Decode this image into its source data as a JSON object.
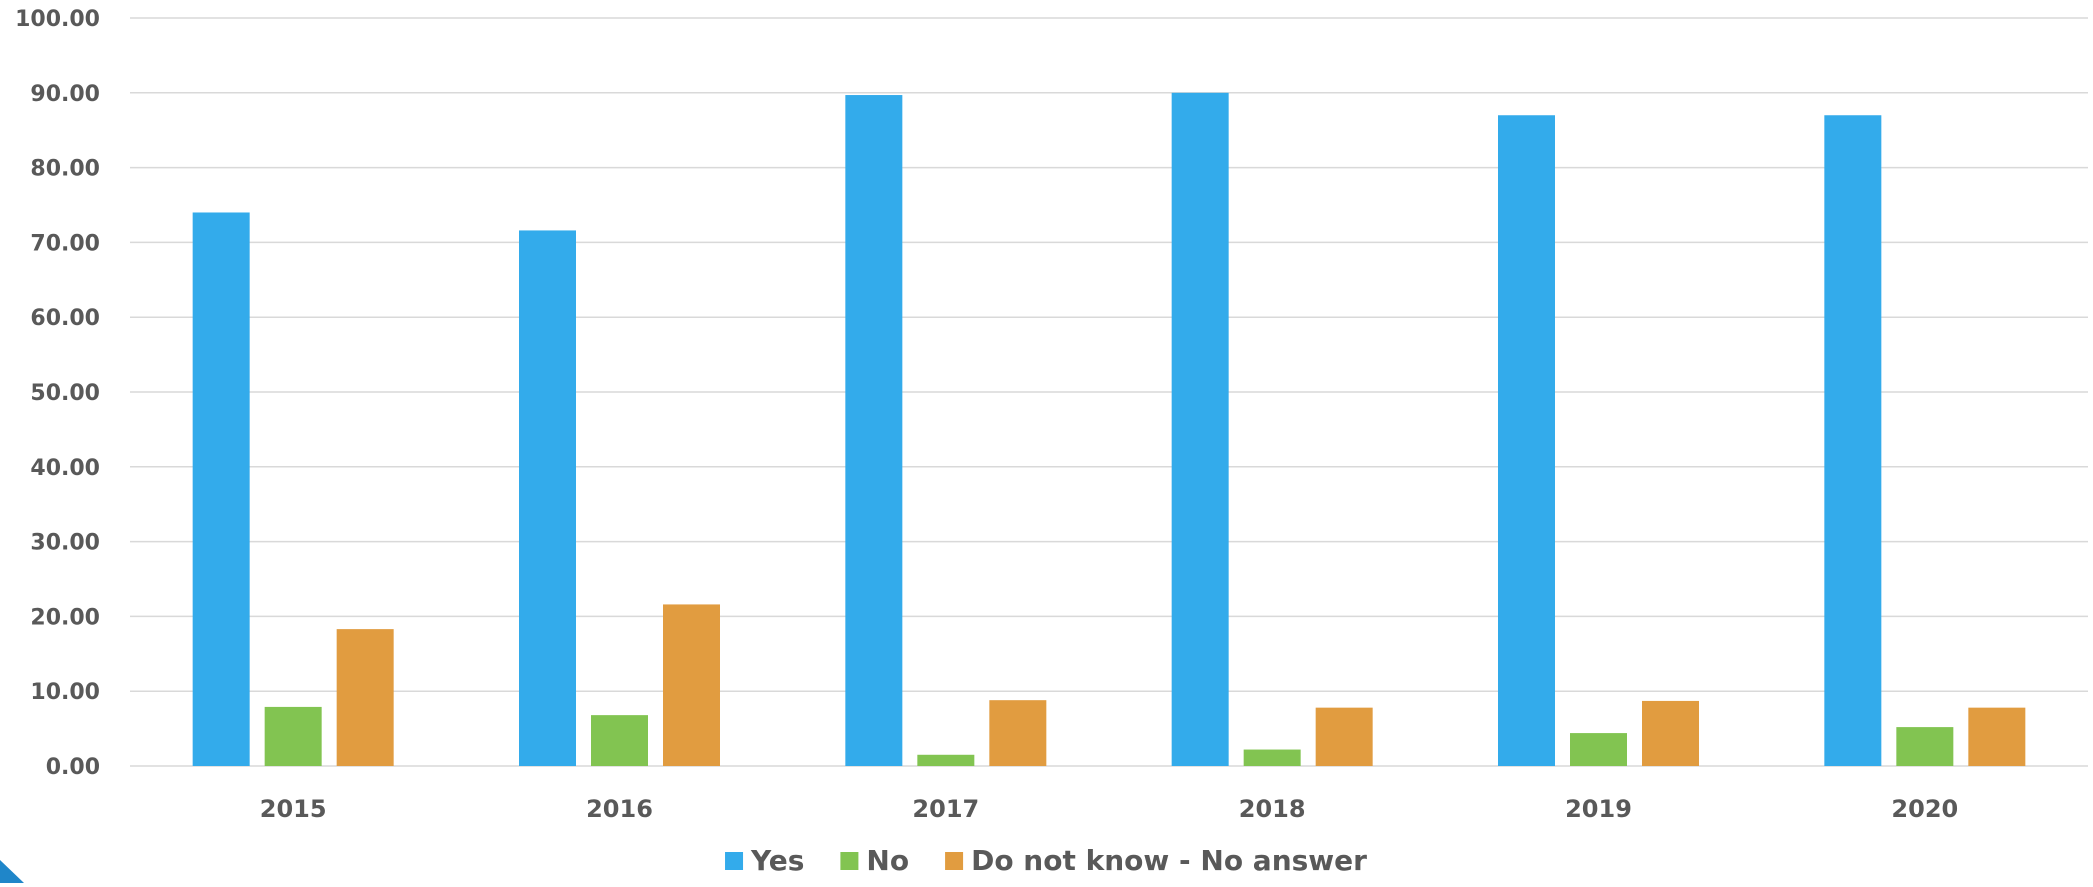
{
  "chart_data": {
    "type": "bar",
    "title": "",
    "xlabel": "",
    "ylabel": "",
    "ylim": [
      0,
      100
    ],
    "yticks": [
      "0.00",
      "10.00",
      "20.00",
      "30.00",
      "40.00",
      "50.00",
      "60.00",
      "70.00",
      "80.00",
      "90.00",
      "100.00"
    ],
    "categories": [
      "2015",
      "2016",
      "2017",
      "2018",
      "2019",
      "2020"
    ],
    "series": [
      {
        "name": "Yes",
        "color": "#33abeb",
        "values": [
          74.0,
          71.6,
          89.7,
          90.0,
          87.0,
          87.0
        ]
      },
      {
        "name": "No",
        "color": "#82c451",
        "values": [
          7.9,
          6.8,
          1.5,
          2.2,
          4.4,
          5.2
        ]
      },
      {
        "name": "Do not know - No answer",
        "color": "#e19c40",
        "values": [
          18.3,
          21.6,
          8.8,
          7.8,
          8.7,
          7.8
        ]
      }
    ],
    "grid": true,
    "legend_position": "bottom-center"
  }
}
